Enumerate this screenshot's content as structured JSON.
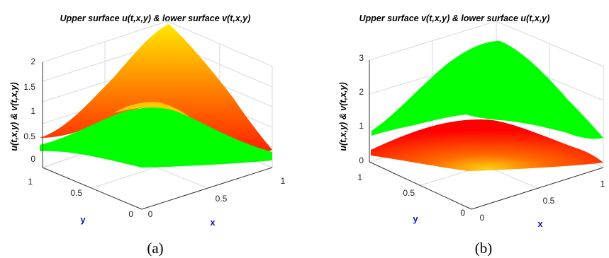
{
  "chart_data": [
    {
      "type": "surface",
      "panel_label": "(a)",
      "title": "Upper surface u(t,x,y) & lower surface v(t,x,y)",
      "xlabel": "x",
      "ylabel": "y",
      "zlabel": "u(t,x,y) & v(t,x,y)",
      "xlim": [
        0,
        1
      ],
      "ylim": [
        0,
        1
      ],
      "zlim": [
        0,
        2
      ],
      "x_ticks": [
        "0",
        "0.5",
        "1"
      ],
      "y_ticks": [
        "0",
        "0.5",
        "1"
      ],
      "z_ticks": [
        "0",
        "0.5",
        "1",
        "1.5",
        "2"
      ],
      "grid": true,
      "series": [
        {
          "colormap": [
            "#ff0000",
            "#ffff00"
          ],
          "peak": 2.2,
          "base": 0.35,
          "corners": {
            "x0y0": 0.3,
            "x1y0": 0.35,
            "x0y1": 0.4,
            "x1y1": 0.3
          },
          "peak_at": [
            0.5,
            0.5
          ]
        },
        {
          "color": "#00ff00",
          "peak": 0.95,
          "base": 0.25,
          "corners": {
            "x0y0": 0.15,
            "x1y0": 0.25,
            "x0y1": 0.3,
            "x1y1": 0.2
          },
          "peak_at": [
            0.5,
            0.5
          ]
        }
      ]
    },
    {
      "type": "surface",
      "panel_label": "(b)",
      "title": "Upper surface v(t,x,y) & lower surface u(t,x,y)",
      "xlabel": "x",
      "ylabel": "y",
      "zlabel": "u(t,x,y) & v(t,x,y)",
      "xlim": [
        0,
        1
      ],
      "ylim": [
        0,
        1
      ],
      "zlim": [
        0,
        3
      ],
      "x_ticks": [
        "0",
        "0.5",
        "1"
      ],
      "y_ticks": [
        "0",
        "0.5",
        "1"
      ],
      "z_ticks": [
        "0",
        "1",
        "2",
        "3"
      ],
      "grid": true,
      "series": [
        {
          "color": "#00ff00",
          "peak": 3.0,
          "base": 0.8,
          "corners": {
            "x0y0": 0.8,
            "x1y0": 0.9,
            "x0y1": 0.85,
            "x1y1": 0.8
          },
          "peak_at": [
            0.5,
            0.5
          ]
        },
        {
          "colormap": [
            "#ff0000",
            "#ffe000"
          ],
          "peak": 1.25,
          "base": 0.15,
          "corners": {
            "x0y0": 0.0,
            "x1y0": 0.1,
            "x0y1": 0.2,
            "x1y1": 0.1
          },
          "peak_at": [
            0.5,
            0.5
          ]
        }
      ]
    }
  ]
}
